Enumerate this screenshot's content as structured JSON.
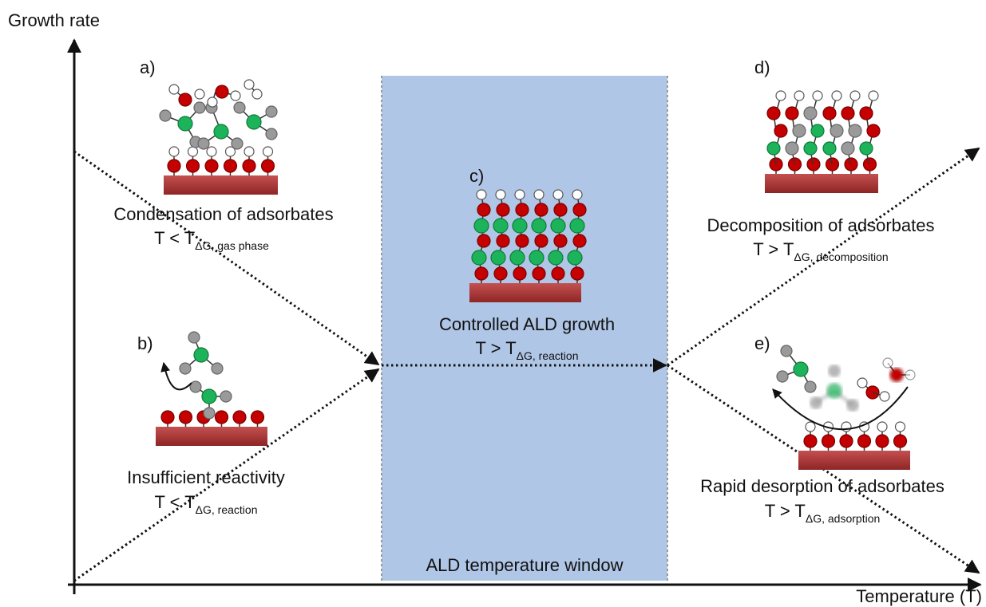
{
  "axes": {
    "y_label": "Growth rate",
    "x_label": "Temperature (T)"
  },
  "window_label": "ALD temperature window",
  "panels": [
    {
      "letter": "a)",
      "title": "Condensation of adsorbates",
      "condition": "T < T",
      "subscript": "ΔG, gas phase"
    },
    {
      "letter": "b)",
      "title": "Insufficient reactivity",
      "condition": "T < T",
      "subscript": "ΔG, reaction"
    },
    {
      "letter": "c)",
      "title": "Controlled ALD growth",
      "condition": "T > T",
      "subscript": "ΔG, reaction"
    },
    {
      "letter": "d)",
      "title": "Decomposition of adsorbates",
      "condition": "T > T",
      "subscript": "ΔG, decomposition"
    },
    {
      "letter": "e)",
      "title": "Rapid desorption of adsorbates",
      "condition": "T > T",
      "subscript": "ΔG, adsorption"
    }
  ]
}
